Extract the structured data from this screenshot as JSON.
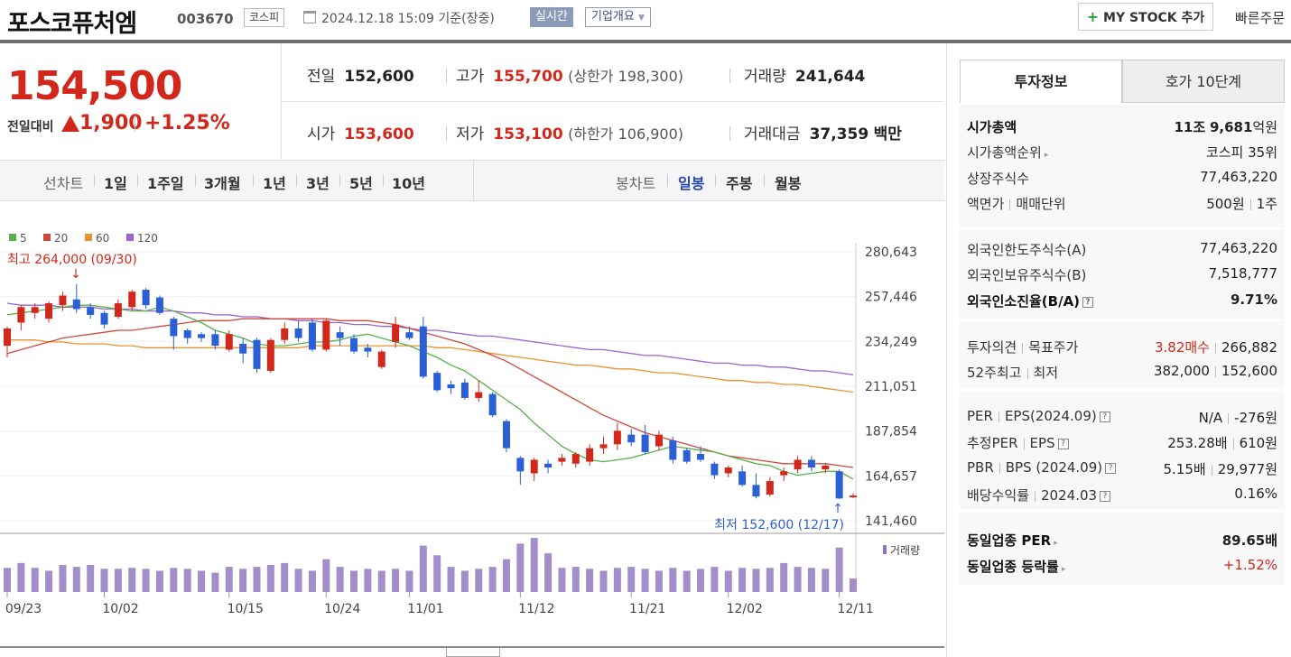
{
  "header": {
    "company": "포스코퓨처엠",
    "code": "003670",
    "market": "코스피",
    "datetime": "2024.12.18 15:09 기준(장중)",
    "realtime": "실시간",
    "corp_overview": "기업개요",
    "mystock": "MY STOCK 추가",
    "quick_order": "빠른주문"
  },
  "summary": {
    "price": "154,500",
    "change_label": "전일대비",
    "change_value": "1,900",
    "change_pct": "+1.25%",
    "prev_label": "전일",
    "prev_value": "152,600",
    "high_label": "고가",
    "high_value": "155,700",
    "upper_limit": "(상한가 198,300)",
    "volume_label": "거래량",
    "volume_value": "241,644",
    "open_label": "시가",
    "open_value": "153,600",
    "low_label": "저가",
    "low_value": "153,100",
    "lower_limit": "(하한가 106,900)",
    "amount_label": "거래대금",
    "amount_value": "37,359",
    "amount_unit": "백만"
  },
  "tabs": {
    "line_chart": "선차트",
    "periods": [
      "1일",
      "1주일",
      "3개월",
      "1년",
      "3년",
      "5년",
      "10년"
    ],
    "candle_chart": "봉차트",
    "candles": [
      "일봉",
      "주봉",
      "월봉"
    ],
    "selected_candle": "일봉"
  },
  "chart_data": {
    "type": "candlestick",
    "legend": [
      "5",
      "20",
      "60",
      "120"
    ],
    "legend_colors": [
      "#57b04b",
      "#d04a3b",
      "#e8932f",
      "#9a66cc"
    ],
    "y_ticks": [
      "280,643",
      "257,446",
      "234,249",
      "211,051",
      "187,854",
      "164,657",
      "141,460"
    ],
    "ylim": [
      141460,
      280643
    ],
    "x_labels": [
      "09/23",
      "10/02",
      "10/15",
      "10/24",
      "11/01",
      "11/12",
      "11/21",
      "12/02",
      "12/11"
    ],
    "high_annotation": "최고 264,000 (09/30)",
    "low_annotation": "최저 152,600 (12/17)",
    "volume_label": "거래량",
    "candles": [
      {
        "o": 232000,
        "c": 241000,
        "h": 242000,
        "l": 226000
      },
      {
        "o": 244000,
        "c": 252000,
        "h": 253000,
        "l": 240000
      },
      {
        "o": 249000,
        "c": 252000,
        "h": 254000,
        "l": 246000
      },
      {
        "o": 246000,
        "c": 254000,
        "h": 255000,
        "l": 244000
      },
      {
        "o": 253000,
        "c": 258000,
        "h": 260000,
        "l": 250000
      },
      {
        "o": 256000,
        "c": 251000,
        "h": 264000,
        "l": 249000
      },
      {
        "o": 252000,
        "c": 248000,
        "h": 254000,
        "l": 246000
      },
      {
        "o": 249000,
        "c": 243000,
        "h": 250000,
        "l": 241000
      },
      {
        "o": 247000,
        "c": 254000,
        "h": 256000,
        "l": 246000
      },
      {
        "o": 252000,
        "c": 260000,
        "h": 261000,
        "l": 250000
      },
      {
        "o": 261000,
        "c": 253000,
        "h": 262000,
        "l": 251000
      },
      {
        "o": 257000,
        "c": 249000,
        "h": 258000,
        "l": 248000
      },
      {
        "o": 246000,
        "c": 237000,
        "h": 247000,
        "l": 230000
      },
      {
        "o": 240000,
        "c": 236000,
        "h": 241000,
        "l": 233000
      },
      {
        "o": 238000,
        "c": 236000,
        "h": 239000,
        "l": 234000
      },
      {
        "o": 238000,
        "c": 232000,
        "h": 240000,
        "l": 230000
      },
      {
        "o": 230000,
        "c": 238000,
        "h": 240000,
        "l": 229000
      },
      {
        "o": 233000,
        "c": 228000,
        "h": 236000,
        "l": 223000
      },
      {
        "o": 235000,
        "c": 220000,
        "h": 236000,
        "l": 218000
      },
      {
        "o": 219000,
        "c": 235000,
        "h": 236000,
        "l": 218000
      },
      {
        "o": 235000,
        "c": 241000,
        "h": 244000,
        "l": 233000
      },
      {
        "o": 241000,
        "c": 236000,
        "h": 245000,
        "l": 234000
      },
      {
        "o": 244000,
        "c": 230000,
        "h": 246000,
        "l": 229000
      },
      {
        "o": 230000,
        "c": 245000,
        "h": 246000,
        "l": 229000
      },
      {
        "o": 239000,
        "c": 236000,
        "h": 242000,
        "l": 232000
      },
      {
        "o": 236000,
        "c": 229000,
        "h": 238000,
        "l": 228000
      },
      {
        "o": 231000,
        "c": 229000,
        "h": 233000,
        "l": 226000
      },
      {
        "o": 221000,
        "c": 229000,
        "h": 230000,
        "l": 220000
      },
      {
        "o": 234000,
        "c": 243000,
        "h": 247000,
        "l": 231000
      },
      {
        "o": 239000,
        "c": 236000,
        "h": 242000,
        "l": 235000
      },
      {
        "o": 242000,
        "c": 216000,
        "h": 247000,
        "l": 215000
      },
      {
        "o": 218000,
        "c": 209000,
        "h": 219000,
        "l": 208000
      },
      {
        "o": 212000,
        "c": 210000,
        "h": 214000,
        "l": 207000
      },
      {
        "o": 213000,
        "c": 205000,
        "h": 215000,
        "l": 204000
      },
      {
        "o": 205000,
        "c": 208000,
        "h": 214000,
        "l": 203000
      },
      {
        "o": 207000,
        "c": 196000,
        "h": 208000,
        "l": 195000
      },
      {
        "o": 193000,
        "c": 179000,
        "h": 194000,
        "l": 177000
      },
      {
        "o": 174000,
        "c": 167000,
        "h": 175000,
        "l": 160000
      },
      {
        "o": 166000,
        "c": 173000,
        "h": 174000,
        "l": 162000
      },
      {
        "o": 171000,
        "c": 169000,
        "h": 173000,
        "l": 166000
      },
      {
        "o": 172000,
        "c": 174000,
        "h": 176000,
        "l": 170000
      },
      {
        "o": 171000,
        "c": 176000,
        "h": 177000,
        "l": 169000
      },
      {
        "o": 172000,
        "c": 179000,
        "h": 181000,
        "l": 170000
      },
      {
        "o": 179000,
        "c": 181000,
        "h": 185000,
        "l": 176000
      },
      {
        "o": 181000,
        "c": 188000,
        "h": 192000,
        "l": 178000
      },
      {
        "o": 186000,
        "c": 182000,
        "h": 189000,
        "l": 180000
      },
      {
        "o": 186000,
        "c": 177000,
        "h": 191000,
        "l": 176000
      },
      {
        "o": 180000,
        "c": 186000,
        "h": 188000,
        "l": 178000
      },
      {
        "o": 183000,
        "c": 173000,
        "h": 185000,
        "l": 171000
      },
      {
        "o": 178000,
        "c": 172000,
        "h": 179000,
        "l": 171000
      },
      {
        "o": 176000,
        "c": 173000,
        "h": 180000,
        "l": 172000
      },
      {
        "o": 171000,
        "c": 165000,
        "h": 172000,
        "l": 163000
      },
      {
        "o": 166000,
        "c": 169000,
        "h": 170000,
        "l": 164000
      },
      {
        "o": 167000,
        "c": 160000,
        "h": 170000,
        "l": 159000
      },
      {
        "o": 160000,
        "c": 154000,
        "h": 166000,
        "l": 153000
      },
      {
        "o": 155000,
        "c": 162000,
        "h": 164000,
        "l": 154000
      },
      {
        "o": 165000,
        "c": 167000,
        "h": 169000,
        "l": 162000
      },
      {
        "o": 168000,
        "c": 173000,
        "h": 175000,
        "l": 166000
      },
      {
        "o": 173000,
        "c": 169000,
        "h": 175000,
        "l": 167000
      },
      {
        "o": 168000,
        "c": 170000,
        "h": 171000,
        "l": 166000
      },
      {
        "o": 167000,
        "c": 153000,
        "h": 168000,
        "l": 152600
      },
      {
        "o": 153600,
        "c": 154500,
        "h": 155700,
        "l": 153100
      }
    ],
    "volumes": [
      25,
      30,
      25,
      22,
      28,
      26,
      28,
      24,
      24,
      25,
      24,
      22,
      25,
      24,
      22,
      20,
      26,
      24,
      26,
      28,
      30,
      24,
      22,
      34,
      26,
      22,
      24,
      22,
      24,
      22,
      48,
      38,
      26,
      22,
      24,
      26,
      34,
      50,
      56,
      40,
      25,
      26,
      24,
      22,
      25,
      26,
      24,
      22,
      25,
      22,
      24,
      26,
      22,
      25,
      24,
      25,
      30,
      26,
      25,
      24,
      46,
      14
    ],
    "ma5": [
      248,
      249,
      250,
      251,
      252,
      253,
      253,
      252,
      251,
      250,
      250,
      252,
      250,
      247,
      244,
      240,
      238,
      236,
      233,
      232,
      232,
      233,
      234,
      234,
      235,
      237,
      238,
      236,
      234,
      232,
      229,
      226,
      222,
      219,
      214,
      209,
      204,
      199,
      192,
      186,
      180,
      176,
      173,
      172,
      173,
      174,
      176,
      178,
      180,
      179,
      178,
      177,
      175,
      173,
      171,
      170,
      167,
      165,
      166,
      167,
      167,
      163
    ],
    "ma20": [
      228,
      230,
      232,
      234,
      236,
      237,
      238,
      239,
      240,
      240,
      241,
      242,
      243,
      244,
      245,
      245,
      245,
      246,
      246,
      246,
      246,
      246,
      246,
      246,
      245,
      245,
      245,
      244,
      243,
      241,
      239,
      237,
      235,
      233,
      230,
      227,
      224,
      220,
      216,
      212,
      208,
      204,
      200,
      196,
      193,
      190,
      187,
      185,
      183,
      181,
      179,
      177,
      175,
      174,
      173,
      172,
      171,
      171,
      171,
      171,
      170,
      169
    ],
    "ma60": [
      235,
      235,
      235,
      234,
      234,
      233,
      233,
      233,
      232,
      232,
      231,
      231,
      231,
      231,
      231,
      231,
      231,
      231,
      231,
      231,
      231,
      231,
      232,
      232,
      232,
      232,
      232,
      232,
      232,
      232,
      232,
      231,
      231,
      230,
      229,
      228,
      227,
      226,
      225,
      224,
      223,
      222,
      222,
      221,
      220,
      220,
      219,
      218,
      218,
      217,
      216,
      215,
      214,
      214,
      213,
      213,
      212,
      212,
      211,
      210,
      209,
      208
    ],
    "ma120": [
      254,
      253,
      253,
      253,
      252,
      252,
      252,
      251,
      251,
      251,
      250,
      250,
      250,
      249,
      249,
      248,
      248,
      247,
      247,
      246,
      246,
      245,
      245,
      244,
      244,
      243,
      243,
      242,
      242,
      241,
      240,
      240,
      239,
      238,
      237,
      237,
      236,
      235,
      234,
      233,
      232,
      231,
      230,
      230,
      229,
      228,
      227,
      227,
      226,
      225,
      224,
      223,
      223,
      222,
      222,
      221,
      221,
      220,
      219,
      219,
      218,
      217
    ]
  },
  "panel": {
    "tab_active": "투자정보",
    "tab_other": "호가 10단계",
    "market_cap_label": "시가총액",
    "market_cap_prefix": "11조",
    "market_cap_value": "9,681",
    "market_cap_unit": "억원",
    "cap_rank_label": "시가총액순위",
    "cap_rank_value": "코스피 35위",
    "shares_label": "상장주식수",
    "shares_value": "77,463,220",
    "face_label": "액면가",
    "unit_label": "매매단위",
    "face_value": "500원",
    "unit_value": "1주",
    "foreign_limit_label": "외국인한도주식수(A)",
    "foreign_limit_value": "77,463,220",
    "foreign_hold_label": "외국인보유주식수(B)",
    "foreign_hold_value": "7,518,777",
    "foreign_ratio_label": "외국인소진율(B/A)",
    "foreign_ratio_value": "9.71%",
    "opinion_label": "투자의견",
    "target_label": "목표주가",
    "opinion_value": "3.82매수",
    "target_value": "266,882",
    "w52_high_label": "52주최고",
    "w52_low_label": "최저",
    "w52_high_value": "382,000",
    "w52_low_value": "152,600",
    "per_label": "PER",
    "eps_label": "EPS(2024.09)",
    "per_value": "N/A",
    "eps_value": "-276원",
    "est_per_label": "추정PER",
    "est_eps_label": "EPS",
    "est_per_value": "253.28배",
    "est_eps_value": "610원",
    "pbr_label": "PBR",
    "bps_label": "BPS (2024.09)",
    "pbr_value": "5.15배",
    "bps_value": "29,977원",
    "div_label": "배당수익률",
    "div_date": "2024.03",
    "div_value": "0.16%",
    "ind_per_label": "동일업종 PER",
    "ind_per_value": "89.65배",
    "ind_chg_label": "동일업종 등락률",
    "ind_chg_value": "+1.52%"
  }
}
